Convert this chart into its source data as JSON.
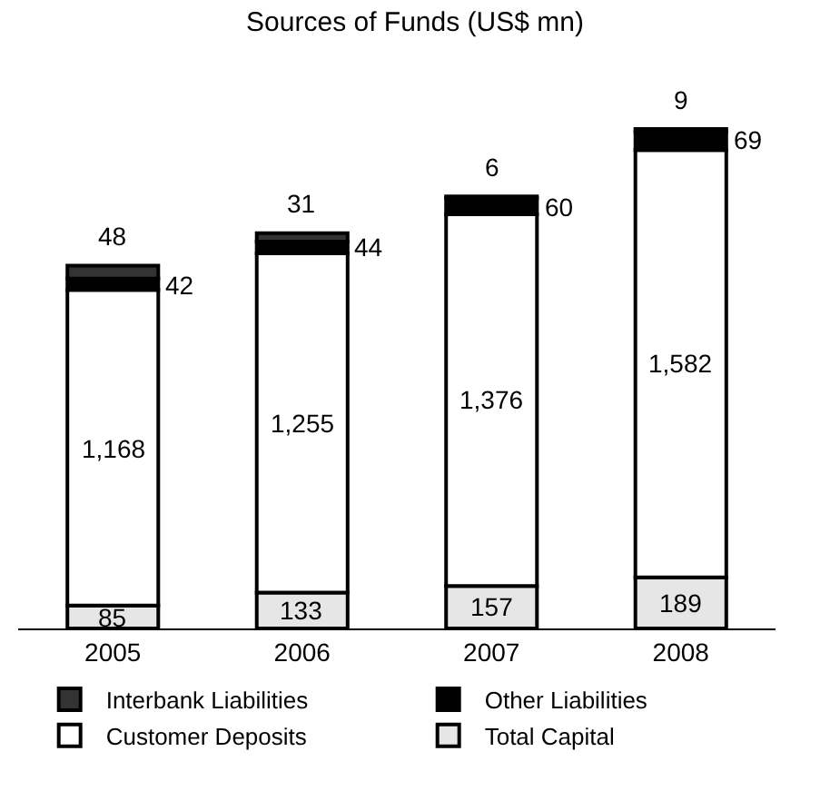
{
  "chart_data": {
    "type": "bar",
    "title": "Sources of Funds (US$ mn)",
    "stacked": true,
    "legend": "bottom",
    "categories": [
      "2005",
      "2006",
      "2007",
      "2008"
    ],
    "series": [
      {
        "name": "Total Capital",
        "color": "#e6e6e6",
        "values": [
          85,
          133,
          157,
          189
        ],
        "value_labels": [
          "85",
          "133",
          "157",
          "189"
        ]
      },
      {
        "name": "Customer Deposits",
        "color": "#ffffff",
        "values": [
          1168,
          1255,
          1376,
          1582
        ],
        "value_labels": [
          "1,168",
          "1,255",
          "1,376",
          "1,582"
        ]
      },
      {
        "name": "Other Liabilities",
        "color": "#000000",
        "values": [
          42,
          44,
          60,
          69
        ],
        "value_labels": [
          "42",
          "44",
          "60",
          "69"
        ]
      },
      {
        "name": "Interbank Liabilities",
        "color": "#333333",
        "values": [
          48,
          31,
          6,
          9
        ],
        "value_labels": [
          "48",
          "31",
          "6",
          "9"
        ]
      }
    ]
  }
}
